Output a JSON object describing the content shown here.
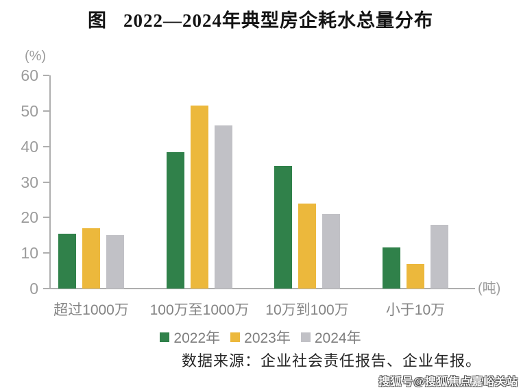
{
  "title": {
    "prefix": "图",
    "text": "2022—2024年典型房企耗水总量分布"
  },
  "chart_data": {
    "type": "bar",
    "categories": [
      "超过1000万",
      "100万至1000万",
      "10万到100万",
      "小于10万"
    ],
    "series": [
      {
        "name": "2022年",
        "color": "#30814A",
        "values": [
          15.5,
          38.5,
          34.5,
          11.5
        ]
      },
      {
        "name": "2023年",
        "color": "#ECB83C",
        "values": [
          17,
          51.5,
          24,
          7
        ]
      },
      {
        "name": "2024年",
        "color": "#C1C1C6",
        "values": [
          15,
          46,
          21,
          18
        ]
      }
    ],
    "y_unit_label": "(%)",
    "x_unit_label": "(吨)",
    "y_ticks": [
      0,
      10,
      20,
      30,
      40,
      50,
      60
    ],
    "ylim": [
      0,
      60
    ],
    "grid": false,
    "legend_position": "bottom"
  },
  "source_note": "数据来源：企业社会责任报告、企业年报。",
  "watermark": "搜狐号@搜狐焦点嘉峪关站",
  "colors": {
    "axis": "#AEAEAE",
    "tick_text": "#9B9B9B",
    "category_text": "#848484",
    "legend_text": "#7F7F7F",
    "title_text": "#141414",
    "source_text": "#262626"
  }
}
